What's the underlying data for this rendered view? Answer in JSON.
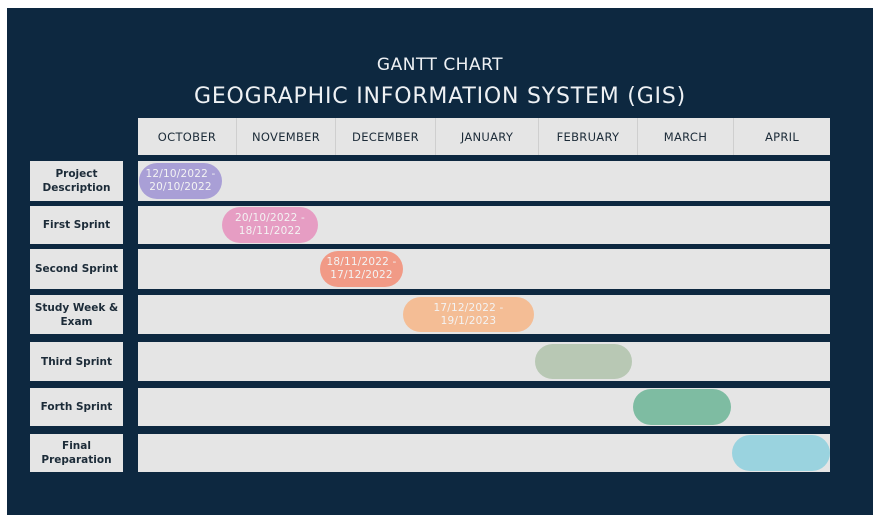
{
  "header": {
    "kicker": "GANTT CHART",
    "title": "GEOGRAPHIC INFORMATION SYSTEM (GIS)"
  },
  "months": [
    "OCTOBER",
    "NOVEMBER",
    "DECEMBER",
    "JANUARY",
    "FEBRUARY",
    "MARCH",
    "APRIL"
  ],
  "tasks": [
    {
      "label": "Project\nDescription",
      "bar_text": "12/10/2022 -\n20/10/2022",
      "color": "#a99fd6"
    },
    {
      "label": "First Sprint",
      "bar_text": "20/10/2022 -\n18/11/2022",
      "color": "#e69dc3"
    },
    {
      "label": "Second Sprint",
      "bar_text": "18/11/2022 -\n17/12/2022",
      "color": "#f19a86"
    },
    {
      "label": "Study Week &\nExam",
      "bar_text": "17/12/2022 -\n19/1/2023",
      "color": "#f4bd95"
    },
    {
      "label": "Third Sprint",
      "bar_text": "",
      "color": "#b8c8b4"
    },
    {
      "label": "Forth Sprint",
      "bar_text": "",
      "color": "#7ebca2"
    },
    {
      "label": "Final\nPreparation",
      "bar_text": "",
      "color": "#9ad3df"
    }
  ]
}
